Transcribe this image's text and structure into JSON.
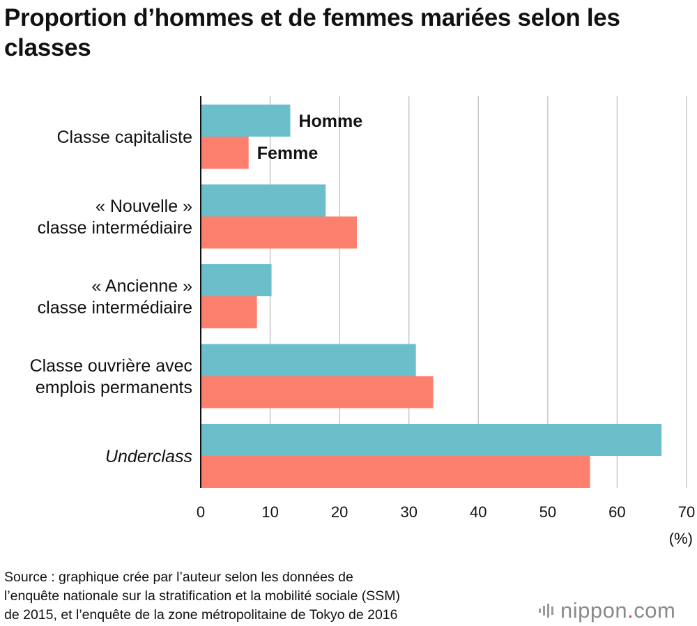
{
  "title": "Proportion d’hommes et de femmes mariées selon les classes",
  "chart_data": {
    "type": "bar",
    "orientation": "horizontal",
    "categories": [
      {
        "lines": [
          "Classe capitaliste"
        ],
        "italic": false
      },
      {
        "lines": [
          "« Nouvelle »",
          "classe intermédiaire"
        ],
        "italic": false
      },
      {
        "lines": [
          "« Ancienne »",
          "classe intermédiaire"
        ],
        "italic": false
      },
      {
        "lines": [
          "Classe ouvrière avec",
          "emplois permanents"
        ],
        "italic": false
      },
      {
        "lines": [
          "Underclass"
        ],
        "italic": true
      }
    ],
    "series": [
      {
        "name": "Homme",
        "color": "#6bbfcb",
        "values": [
          12.9,
          18.0,
          10.2,
          31.0,
          66.4
        ]
      },
      {
        "name": "Femme",
        "color": "#fd806e",
        "values": [
          6.9,
          22.5,
          8.1,
          33.5,
          56.1
        ]
      }
    ],
    "xlim": [
      0,
      70
    ],
    "xticks": [
      "0",
      "10",
      "20",
      "30",
      "40",
      "50",
      "60",
      "70"
    ],
    "xunit": "(%)",
    "grid": true,
    "legend": "inline labels next to first category bars"
  },
  "source_lines": [
    "Source : graphique crée par l’auteur selon les données de",
    "l’enquête nationale sur la stratification et la mobilité sociale (SSM)",
    "de 2015, et l’enquête de la zone métropolitaine de Tokyo de 2016"
  ],
  "logo": {
    "name": "nippon",
    "dot": ".",
    "tld": "com",
    "icon": "nippon-logo-icon"
  }
}
